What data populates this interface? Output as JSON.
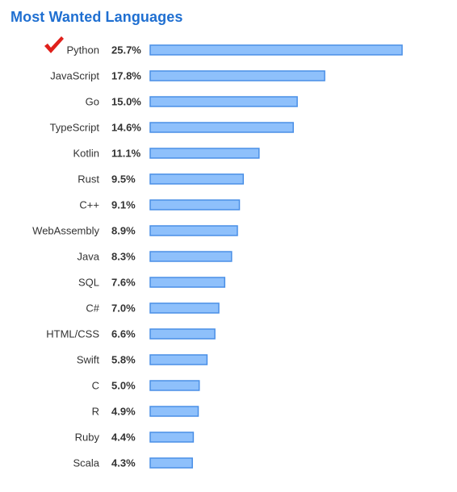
{
  "chart_data": {
    "type": "bar",
    "orientation": "horizontal",
    "title": "Most Wanted Languages",
    "categories": [
      "Python",
      "JavaScript",
      "Go",
      "TypeScript",
      "Kotlin",
      "Rust",
      "C++",
      "WebAssembly",
      "Java",
      "SQL",
      "C#",
      "HTML/CSS",
      "Swift",
      "C",
      "R",
      "Ruby",
      "Scala"
    ],
    "values": [
      25.7,
      17.8,
      15.0,
      14.6,
      11.1,
      9.5,
      9.1,
      8.9,
      8.3,
      7.6,
      7.0,
      6.6,
      5.8,
      5.0,
      4.9,
      4.4,
      4.3
    ],
    "value_labels": [
      "25.7%",
      "17.8%",
      "15.0%",
      "14.6%",
      "11.1%",
      "9.5%",
      "9.1%",
      "8.9%",
      "8.3%",
      "7.6%",
      "7.0%",
      "6.6%",
      "5.8%",
      "5.0%",
      "4.9%",
      "4.4%",
      "4.3%"
    ],
    "highlighted": "Python",
    "highlight_icon": "checkmark-icon",
    "highlight_color": "#e0201b",
    "bar_color": "#8ec0fb",
    "bar_border_color": "#4a8fe6",
    "title_color": "#1f6fd1",
    "grid": false,
    "legend": "none"
  }
}
